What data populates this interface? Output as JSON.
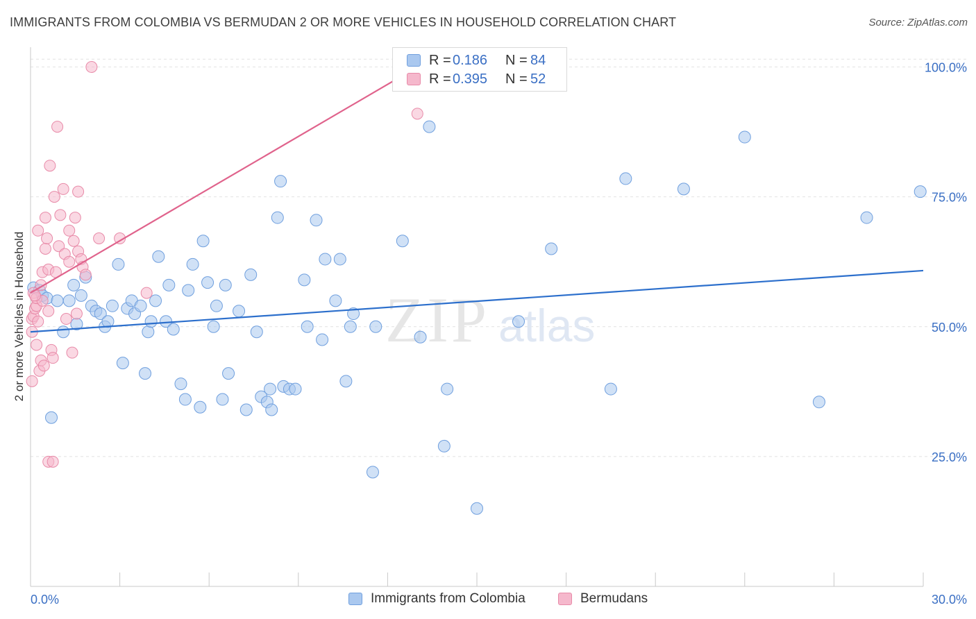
{
  "title": "IMMIGRANTS FROM COLOMBIA VS BERMUDAN 2 OR MORE VEHICLES IN HOUSEHOLD CORRELATION CHART",
  "source": "Source: ZipAtlas.com",
  "watermark": {
    "zip": "ZIP",
    "atlas": "atlas"
  },
  "legend": {
    "rows": [
      {
        "r_label": "R =",
        "r_value": "0.186",
        "n_label": "N =",
        "n_value": "84"
      },
      {
        "r_label": "R =",
        "r_value": "0.395",
        "n_label": "N =",
        "n_value": "52"
      }
    ]
  },
  "bottom_legend": {
    "series1": "Immigrants from Colombia",
    "series2": "Bermudans"
  },
  "colors": {
    "blue_fill": "#aac8ef",
    "blue_stroke": "#6f9fde",
    "blue_line": "#2c6fcc",
    "pink_fill": "#f5b8cc",
    "pink_stroke": "#e88aa8",
    "pink_line": "#e0638c",
    "axis_text": "#3a6fc4",
    "grid": "#e2e2e2"
  },
  "chart_data": {
    "type": "scatter",
    "title": "IMMIGRANTS FROM COLOMBIA VS BERMUDAN 2 OR MORE VEHICLES IN HOUSEHOLD CORRELATION CHART",
    "xlabel": "",
    "ylabel": "2 or more Vehicles in Household",
    "xlim": [
      0,
      30
    ],
    "ylim": [
      0,
      102
    ],
    "x_tick_labels": [
      "0.0%",
      "30.0%"
    ],
    "y_ticks": [
      25,
      50,
      75,
      100
    ],
    "y_tick_labels": [
      "25.0%",
      "50.0%",
      "75.0%",
      "100.0%"
    ],
    "grid": true,
    "legend_position": "top-center",
    "series": [
      {
        "name": "Immigrants from Colombia",
        "color": "#aac8ef",
        "r": 0.186,
        "n": 84,
        "trend": {
          "x": [
            0,
            30
          ],
          "y": [
            49.0,
            60.8
          ]
        },
        "points": [
          [
            0.1,
            57.5
          ],
          [
            0.3,
            57.0
          ],
          [
            0.4,
            56.0
          ],
          [
            0.55,
            55.5
          ],
          [
            0.7,
            32.5
          ],
          [
            0.9,
            55.0
          ],
          [
            1.1,
            49.0
          ],
          [
            1.3,
            55.0
          ],
          [
            1.45,
            58.0
          ],
          [
            1.55,
            50.5
          ],
          [
            1.7,
            56.0
          ],
          [
            1.85,
            59.5
          ],
          [
            2.05,
            54.0
          ],
          [
            2.2,
            53.0
          ],
          [
            2.35,
            52.5
          ],
          [
            2.5,
            50.0
          ],
          [
            2.6,
            51.0
          ],
          [
            2.75,
            54.0
          ],
          [
            2.95,
            62.0
          ],
          [
            3.1,
            43.0
          ],
          [
            3.25,
            53.5
          ],
          [
            3.4,
            55.0
          ],
          [
            3.5,
            52.5
          ],
          [
            3.7,
            54.0
          ],
          [
            3.85,
            41.0
          ],
          [
            3.95,
            49.0
          ],
          [
            4.05,
            51.0
          ],
          [
            4.2,
            55.0
          ],
          [
            4.3,
            63.5
          ],
          [
            4.55,
            51.0
          ],
          [
            4.65,
            58.0
          ],
          [
            4.8,
            49.5
          ],
          [
            5.05,
            39.0
          ],
          [
            5.2,
            36.0
          ],
          [
            5.3,
            57.0
          ],
          [
            5.45,
            62.0
          ],
          [
            5.7,
            34.5
          ],
          [
            5.8,
            66.5
          ],
          [
            5.95,
            58.5
          ],
          [
            6.15,
            50.0
          ],
          [
            6.25,
            54.0
          ],
          [
            6.45,
            36.0
          ],
          [
            6.55,
            58.0
          ],
          [
            6.65,
            41.0
          ],
          [
            7.0,
            53.0
          ],
          [
            7.25,
            34.0
          ],
          [
            7.4,
            60.0
          ],
          [
            7.6,
            49.0
          ],
          [
            7.75,
            36.5
          ],
          [
            7.95,
            35.5
          ],
          [
            8.05,
            38.0
          ],
          [
            8.1,
            34.0
          ],
          [
            8.3,
            71.0
          ],
          [
            8.4,
            78.0
          ],
          [
            8.5,
            38.5
          ],
          [
            8.7,
            38.0
          ],
          [
            8.9,
            38.0
          ],
          [
            9.2,
            59.0
          ],
          [
            9.3,
            50.0
          ],
          [
            9.6,
            70.5
          ],
          [
            9.8,
            47.5
          ],
          [
            9.9,
            63.0
          ],
          [
            10.25,
            55.0
          ],
          [
            10.4,
            63.0
          ],
          [
            10.6,
            39.5
          ],
          [
            10.75,
            50.0
          ],
          [
            10.85,
            52.5
          ],
          [
            11.5,
            22.0
          ],
          [
            11.6,
            50.0
          ],
          [
            12.5,
            66.5
          ],
          [
            13.1,
            48.0
          ],
          [
            13.4,
            88.5
          ],
          [
            13.9,
            27.0
          ],
          [
            14.0,
            38.0
          ],
          [
            15.0,
            15.0
          ],
          [
            16.4,
            51.0
          ],
          [
            17.5,
            65.0
          ],
          [
            19.5,
            38.0
          ],
          [
            20.0,
            78.5
          ],
          [
            21.95,
            76.5
          ],
          [
            24.0,
            86.5
          ],
          [
            26.5,
            35.5
          ],
          [
            28.1,
            71.0
          ],
          [
            29.9,
            76.0
          ]
        ]
      },
      {
        "name": "Bermudans",
        "color": "#f5b8cc",
        "r": 0.395,
        "n": 52,
        "trend": {
          "x": [
            0,
            13.0
          ],
          "y": [
            56.5,
            100.0
          ]
        },
        "points": [
          [
            0.05,
            39.5
          ],
          [
            0.05,
            49.0
          ],
          [
            0.05,
            51.5
          ],
          [
            0.1,
            52.0
          ],
          [
            0.1,
            56.5
          ],
          [
            0.15,
            53.5
          ],
          [
            0.2,
            46.5
          ],
          [
            0.2,
            54.0
          ],
          [
            0.2,
            55.5
          ],
          [
            0.25,
            68.5
          ],
          [
            0.25,
            51.0
          ],
          [
            0.3,
            41.5
          ],
          [
            0.35,
            43.5
          ],
          [
            0.4,
            60.5
          ],
          [
            0.4,
            55.0
          ],
          [
            0.45,
            42.5
          ],
          [
            0.5,
            71.0
          ],
          [
            0.5,
            65.0
          ],
          [
            0.55,
            67.0
          ],
          [
            0.6,
            61.0
          ],
          [
            0.6,
            24.0
          ],
          [
            0.65,
            81.0
          ],
          [
            0.7,
            45.5
          ],
          [
            0.75,
            24.0
          ],
          [
            0.75,
            44.0
          ],
          [
            0.8,
            75.0
          ],
          [
            0.85,
            60.5
          ],
          [
            0.9,
            88.5
          ],
          [
            0.95,
            65.5
          ],
          [
            1.0,
            71.5
          ],
          [
            1.1,
            76.5
          ],
          [
            1.15,
            64.0
          ],
          [
            1.2,
            51.5
          ],
          [
            1.3,
            68.5
          ],
          [
            1.3,
            62.5
          ],
          [
            1.4,
            45.0
          ],
          [
            1.45,
            66.5
          ],
          [
            1.5,
            71.0
          ],
          [
            1.55,
            52.5
          ],
          [
            1.6,
            64.5
          ],
          [
            1.7,
            63.0
          ],
          [
            1.75,
            61.5
          ],
          [
            1.6,
            76.0
          ],
          [
            1.85,
            60.0
          ],
          [
            2.05,
            100.0
          ],
          [
            2.3,
            67.0
          ],
          [
            3.0,
            67.0
          ],
          [
            3.9,
            56.5
          ],
          [
            13.0,
            91.0
          ],
          [
            0.15,
            56.0
          ],
          [
            0.35,
            58.0
          ],
          [
            0.6,
            53.0
          ]
        ]
      }
    ]
  }
}
